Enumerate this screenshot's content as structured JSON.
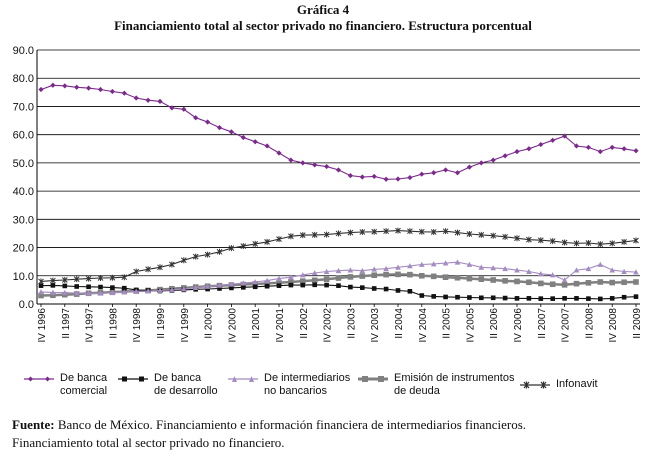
{
  "header": {
    "label": "Gráfica 4",
    "title": "Financiamiento total al sector privado no financiero. Estructura porcentual"
  },
  "chart_data": {
    "type": "line",
    "ylim": [
      0,
      90
    ],
    "yticks": [
      "0.0",
      "10.0",
      "20.0",
      "30.0",
      "40.0",
      "50.0",
      "60.0",
      "70.0",
      "80.0",
      "90.0"
    ],
    "x_tick_labels": [
      "IV 1996",
      "II 1997",
      "IV 1997",
      "II 1998",
      "IV 1998",
      "II 1999",
      "IV 1999",
      "II 2000",
      "IV 2000",
      "II 2001",
      "IV 2001",
      "II 2002",
      "IV 2002",
      "II 2003",
      "IV 2003",
      "II 2004",
      "IV 2004",
      "II 2005",
      "IV 2005",
      "II 2006",
      "IV 2006",
      "II 2007",
      "IV 2007",
      "II 2008",
      "IV 2008",
      "II 2009"
    ],
    "n_points": 51,
    "series": [
      {
        "name": "De banca comercial",
        "legend_label": "De banca\ncomercial",
        "color": "#7b2a8c",
        "marker": "diamond",
        "values": [
          76,
          77.5,
          77.3,
          76.8,
          76.5,
          76,
          75.3,
          74.7,
          73,
          72.2,
          71.8,
          69.5,
          69,
          66,
          64.5,
          62.5,
          61,
          59,
          57.5,
          56,
          53.5,
          51,
          50,
          49.3,
          48.7,
          47.5,
          45.5,
          45,
          45.2,
          44.2,
          44.3,
          44.8,
          46,
          46.5,
          47.5,
          46.5,
          48.5,
          50,
          51,
          52.5,
          54,
          55,
          56.5,
          58,
          59.5,
          56,
          55.5,
          54,
          55.5,
          55,
          54.3
        ]
      },
      {
        "name": "De banca de desarrollo",
        "legend_label": "De banca\nde desarrollo",
        "color": "#111111",
        "marker": "square",
        "values": [
          6.5,
          6.6,
          6.4,
          6.2,
          6.1,
          6,
          5.8,
          5.6,
          5,
          4.8,
          4.6,
          4.8,
          5,
          5.2,
          5.3,
          5.5,
          5.7,
          5.9,
          6.1,
          6.3,
          6.5,
          6.7,
          6.7,
          6.8,
          6.7,
          6.5,
          6,
          5.8,
          5.5,
          5.3,
          4.8,
          4.5,
          3,
          2.7,
          2.5,
          2.4,
          2.3,
          2.2,
          2.2,
          2.1,
          2,
          2,
          1.9,
          1.9,
          2,
          2,
          1.9,
          1.8,
          2,
          2.4,
          2.6
        ]
      },
      {
        "name": "De intermediarios no bancarios",
        "legend_label": "De intermediarios\nno bancarios",
        "color": "#a48cc0",
        "marker": "triangle",
        "values": [
          4.3,
          4.1,
          4,
          3.9,
          3.8,
          3.8,
          4,
          4.2,
          4.5,
          4.6,
          4.8,
          5,
          5.3,
          5.8,
          6.2,
          6.6,
          7,
          7.4,
          7.8,
          8.3,
          9,
          9.5,
          10.3,
          11,
          11.5,
          11.8,
          12,
          11.8,
          12.3,
          12.5,
          13,
          13.5,
          14,
          14.2,
          14.5,
          14.8,
          14,
          13,
          12.8,
          12.5,
          12,
          11.5,
          10.7,
          10.3,
          8.5,
          12,
          12.5,
          14,
          12,
          11.5,
          11.3
        ]
      },
      {
        "name": "Emisión de instrumentos de deuda",
        "legend_label": "Emisión de instrumentos\nde deuda",
        "color": "#808080",
        "marker": "square",
        "values": [
          3,
          3.1,
          3.3,
          3.5,
          3.8,
          4,
          4.2,
          4.4,
          4.6,
          4.8,
          5.1,
          5.4,
          5.7,
          6,
          6.3,
          6.5,
          6.7,
          6.9,
          7.1,
          7.3,
          7.5,
          7.8,
          8.1,
          8.4,
          8.8,
          9.2,
          9.6,
          9.9,
          10.2,
          10.4,
          10.5,
          10.4,
          10,
          9.8,
          9.5,
          9.3,
          9,
          8.8,
          8.5,
          8.2,
          8,
          7.7,
          7.3,
          7,
          6.8,
          7.2,
          7.5,
          7.8,
          7.6,
          7.7,
          7.8
        ]
      },
      {
        "name": "Infonavit",
        "legend_label": "Infonavit",
        "color": "#333333",
        "marker": "star",
        "values": [
          8,
          8.3,
          8.5,
          8.8,
          9,
          9.2,
          9.3,
          9.5,
          11.5,
          12.3,
          13,
          14,
          15.5,
          16.8,
          17.5,
          18.5,
          19.8,
          20.5,
          21.3,
          22,
          23,
          24,
          24.4,
          24.5,
          24.6,
          25,
          25.3,
          25.5,
          25.6,
          25.8,
          26,
          25.8,
          25.6,
          25.5,
          25.8,
          25.3,
          24.8,
          24.5,
          24.2,
          23.8,
          23.3,
          22.8,
          22.6,
          22.3,
          21.8,
          21.5,
          21.6,
          21.2,
          21.5,
          22,
          22.5
        ]
      }
    ]
  },
  "footer": {
    "source_label": "Fuente:",
    "source_text": "Banco de México. Financiamiento e información financiera de intermediarios financieros.",
    "source_text2": "Financiamiento total al sector privado no financiero."
  }
}
